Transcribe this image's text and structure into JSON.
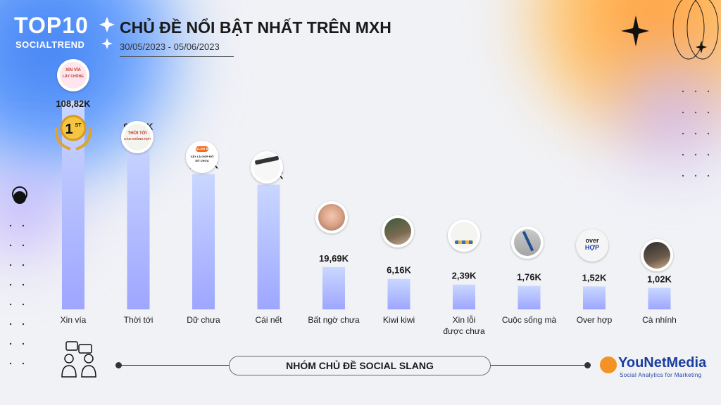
{
  "header": {
    "logo_top": "TOP10",
    "logo_sub": "SOCIALTREND",
    "title": "CHỦ ĐỀ NỔI BẬT NHẤT TRÊN MXH",
    "date_range": "30/05/2023 - 05/06/2023"
  },
  "footer": {
    "group_label": "NHÓM CHỦ ĐỀ SOCIAL SLANG",
    "brand": "YouNetMedia",
    "brand_tagline": "Social Analytics for Marketing"
  },
  "badge": {
    "rank_number": "1",
    "rank_suffix": "ST"
  },
  "thumbnail_texts": {
    "xin_via": [
      "XIN VÍA",
      "LẤY CHỒNG"
    ],
    "thoi_toi": [
      "THỜI TỚI",
      "CẢN KHÔNG KỊP!"
    ],
    "du_chua": [
      "VLOG 5",
      "VẬY LÀ GIÚP ĐỠ",
      "DỮ CHƯA"
    ],
    "over_hop": [
      "over",
      "HỢP"
    ]
  },
  "colors": {
    "bar_top": "#c9d7ff",
    "bar_bottom": "#9ea6ff",
    "text": "#1a1a1a"
  },
  "chart_data": {
    "type": "bar",
    "categories": [
      "Xin vía",
      "Thời tới",
      "Dữ chưa",
      "Cái nết",
      "Bất ngờ chưa",
      "Kiwi kiwi",
      "Xin lỗi được chưa",
      "Cuộc sống mà",
      "Over hợp",
      "Cà nhính"
    ],
    "category_lines": [
      [
        "Xin vía"
      ],
      [
        "Thời tới"
      ],
      [
        "Dữ chưa"
      ],
      [
        "Cái nết"
      ],
      [
        "Bất ngờ chưa"
      ],
      [
        "Kiwi kiwi"
      ],
      [
        "Xin lỗi",
        "được chưa"
      ],
      [
        "Cuộc sống mà"
      ],
      [
        "Over hợp"
      ],
      [
        "Cà nhính"
      ]
    ],
    "values": [
      108820,
      90680,
      70560,
      65050,
      19690,
      6160,
      2390,
      1760,
      1520,
      1020
    ],
    "value_labels": [
      "108,82K",
      "90,68K",
      "70,56K",
      "65,05K",
      "19,69K",
      "6,16K",
      "2,39K",
      "1,76K",
      "1,52K",
      "1,02K"
    ],
    "ylim": [
      0,
      120000
    ],
    "grid": false,
    "legend": "none"
  }
}
